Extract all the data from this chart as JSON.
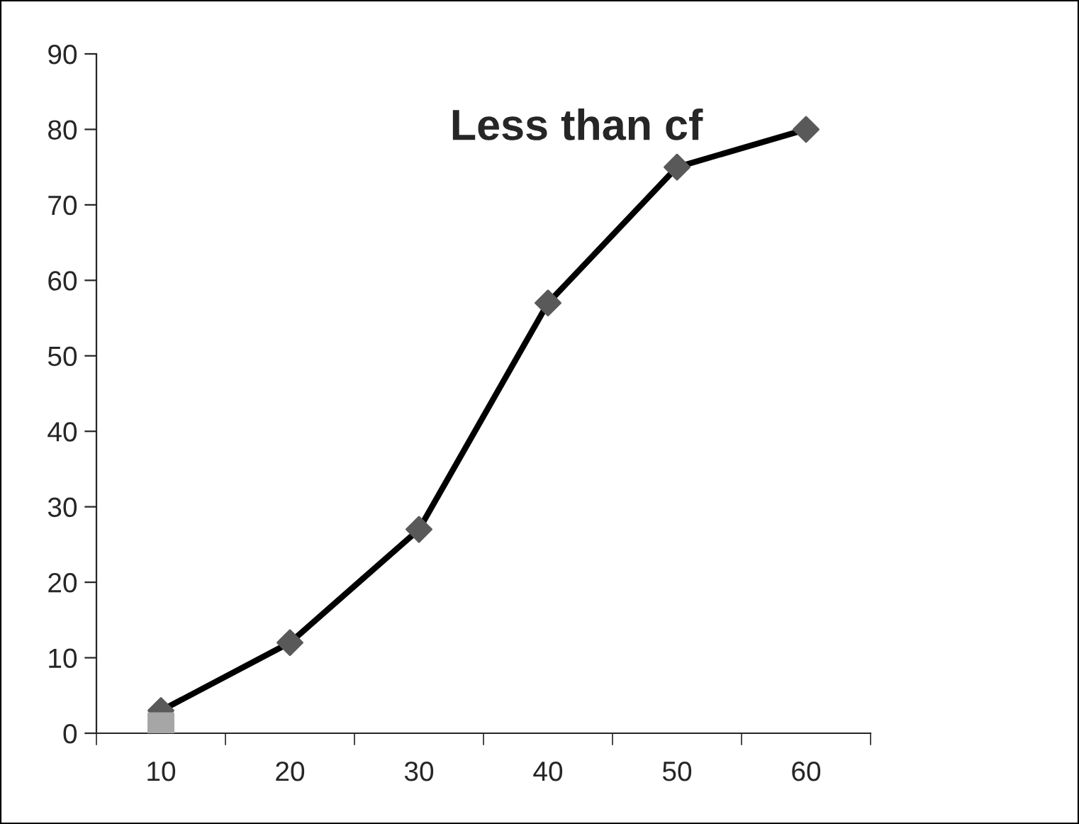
{
  "chart_data": {
    "type": "line",
    "title": "Less than cf",
    "categories": [
      "10",
      "20",
      "30",
      "40",
      "50",
      "60"
    ],
    "series": [
      {
        "color": "#000000",
        "colors": [
          "#595959",
          "#595959",
          "#595959",
          "#595959",
          "#595959",
          "#595959"
        ],
        "marker": "diamond",
        "values": [
          3,
          12,
          27,
          57,
          75,
          80
        ]
      },
      {
        "type": "scatter",
        "color": "#a6a6a6",
        "marker": "square",
        "values": [
          1,
          null,
          null,
          null,
          null,
          null
        ]
      }
    ],
    "ylim": [
      0,
      90
    ],
    "yticks": [
      0,
      10,
      20,
      30,
      40,
      50,
      60,
      70,
      80,
      90
    ],
    "grid": false,
    "legend": false
  }
}
